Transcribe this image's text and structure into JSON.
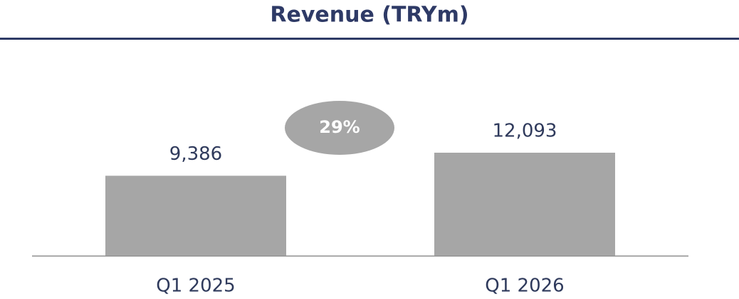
{
  "chart_data": {
    "type": "bar",
    "title": "Revenue (TRYm)",
    "categories": [
      "Q1 2025",
      "Q1 2026"
    ],
    "values": [
      9386,
      12093
    ],
    "value_labels": [
      "9,386",
      "12,093"
    ],
    "color": "#a6a6a6",
    "annotation": "29%"
  }
}
